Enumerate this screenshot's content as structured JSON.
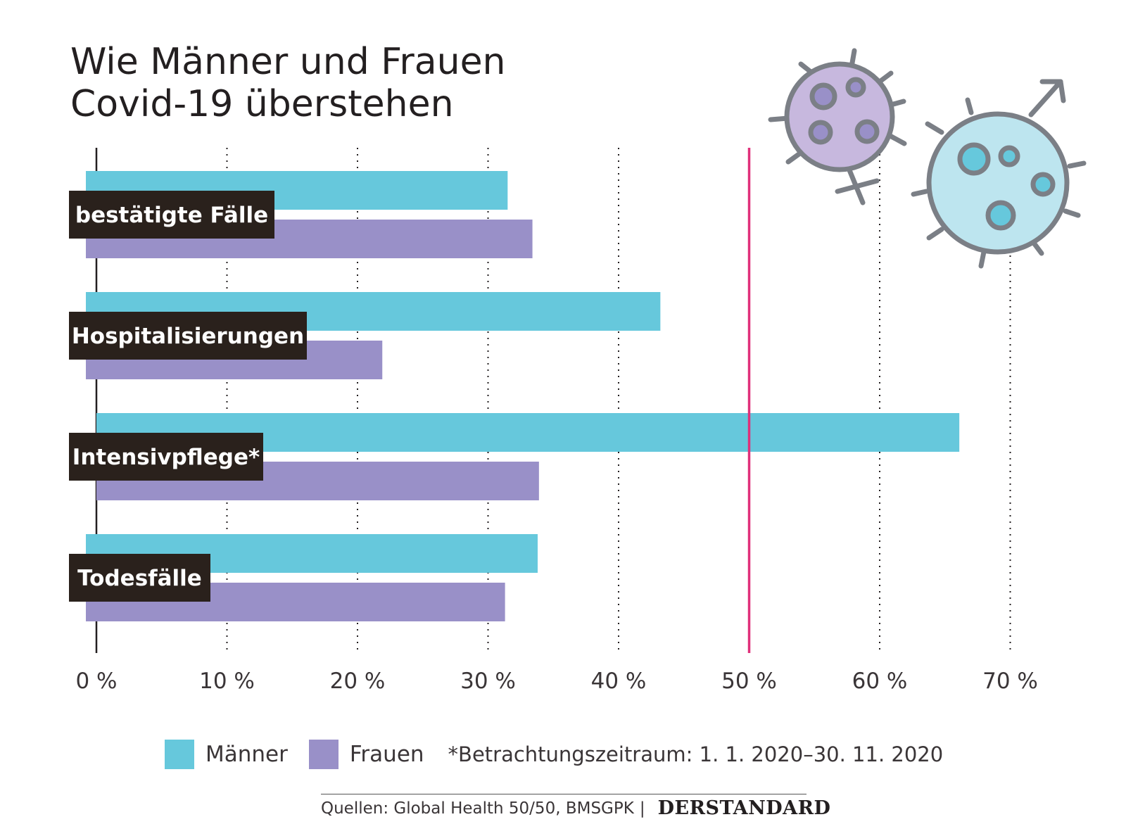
{
  "title_lines": [
    "Wie Männer und Frauen",
    "Covid-19 überstehen"
  ],
  "colors": {
    "maenner": "#66c8dc",
    "frauen": "#9990c8",
    "reference_line": "#e0307a",
    "label_bg": "#2a211c"
  },
  "chart_data": {
    "type": "bar",
    "orientation": "horizontal",
    "categories": [
      "bestätigte Fälle",
      "Hospitalisierungen",
      "Intensivpflege*",
      "Todesfälle"
    ],
    "series": [
      {
        "name": "Männer",
        "values": [
          31.5,
          43.2,
          66.1,
          33.8
        ]
      },
      {
        "name": "Frauen",
        "values": [
          33.4,
          21.9,
          33.9,
          31.3
        ]
      }
    ],
    "xlim": [
      0,
      70
    ],
    "ticks": [
      0,
      10,
      20,
      30,
      40,
      50,
      60,
      70
    ],
    "tick_labels": [
      "0 %",
      "10 %",
      "20 %",
      "30 %",
      "40 %",
      "50 %",
      "60 %",
      "70 %"
    ],
    "reference_line": 50,
    "grid": "dotted vertical"
  },
  "legend": {
    "maenner": "Männer",
    "frauen": "Frauen"
  },
  "footnote": "*Betrachtungszeitraum: 1. 1. 2020–30. 11. 2020",
  "source": {
    "text": "Quellen: Global Health 50/50, BMSGPK",
    "separator": "|",
    "brand": "DERSTANDARD"
  }
}
